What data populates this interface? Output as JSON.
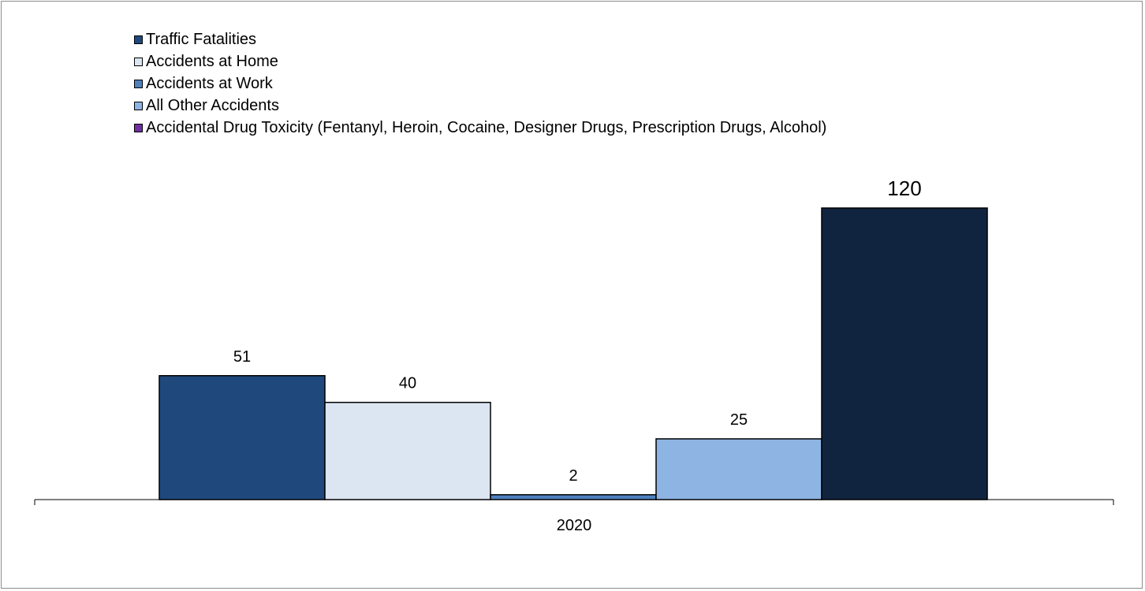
{
  "chart_data": {
    "type": "bar",
    "title": "",
    "xlabel": "",
    "ylabel": "",
    "categories": [
      "2020"
    ],
    "ylim": [
      0,
      120
    ],
    "legend_position": "top-left",
    "grid": false,
    "series": [
      {
        "name": "Traffic Fatalities",
        "values": [
          51
        ],
        "label": "51",
        "color": "#1f497d"
      },
      {
        "name": "Accidents at Home",
        "values": [
          40
        ],
        "label": "40",
        "color": "#dce6f2"
      },
      {
        "name": "Accidents at Work",
        "values": [
          2
        ],
        "label": "2",
        "color": "#4f81bd"
      },
      {
        "name": "All Other Accidents",
        "values": [
          25
        ],
        "label": "25",
        "color": "#8eb4e3"
      },
      {
        "name": "Accidental Drug Toxicity (Fentanyl, Heroin, Cocaine, Designer Drugs, Prescription Drugs, Alcohol)",
        "values": [
          120
        ],
        "label": "120",
        "color": "#10243f",
        "legend_color": "#7030a0"
      }
    ]
  }
}
